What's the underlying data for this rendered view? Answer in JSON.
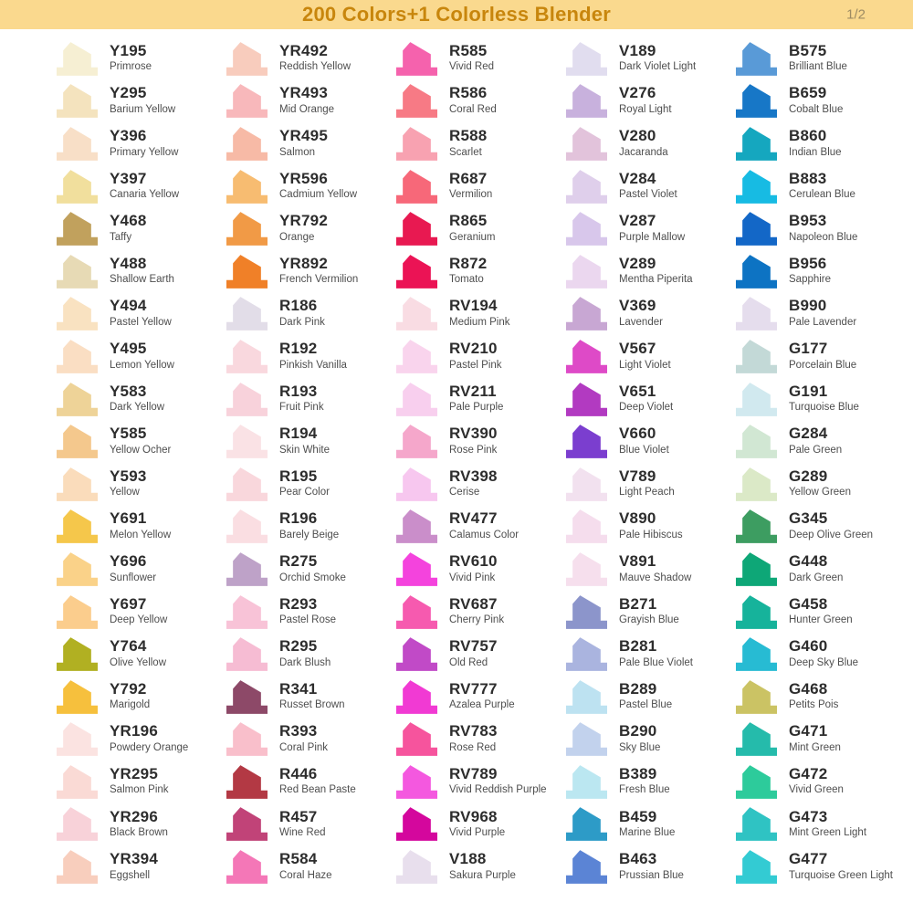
{
  "header": {
    "title": "200 Colors+1 Colorless Blender",
    "page": "1/2",
    "bg_color": "#FAD98E",
    "title_color": "#C8860D",
    "page_color": "#9D8B63"
  },
  "swatches": {
    "columns": [
      {
        "items": [
          {
            "code": "Y195",
            "name": "Primrose",
            "color": "#F6EFD3"
          },
          {
            "code": "Y295",
            "name": "Barium Yellow",
            "color": "#F4E3BE"
          },
          {
            "code": "Y396",
            "name": "Primary Yellow",
            "color": "#F8DFC7"
          },
          {
            "code": "Y397",
            "name": "Canaria Yellow",
            "color": "#F1DF9D"
          },
          {
            "code": "Y468",
            "name": "Taffy",
            "color": "#C1A15D"
          },
          {
            "code": "Y488",
            "name": "Shallow Earth",
            "color": "#E7DAB5"
          },
          {
            "code": "Y494",
            "name": "Pastel Yellow",
            "color": "#F9E2C1"
          },
          {
            "code": "Y495",
            "name": "Lemon Yellow",
            "color": "#FADEC3"
          },
          {
            "code": "Y583",
            "name": "Dark Yellow",
            "color": "#EED398"
          },
          {
            "code": "Y585",
            "name": "Yellow Ocher",
            "color": "#F4C88D"
          },
          {
            "code": "Y593",
            "name": "Yellow",
            "color": "#FADCBB"
          },
          {
            "code": "Y691",
            "name": "Melon Yellow",
            "color": "#F5C74B"
          },
          {
            "code": "Y696",
            "name": "Sunflower",
            "color": "#FAD289"
          },
          {
            "code": "Y697",
            "name": "Deep Yellow",
            "color": "#FBCD8D"
          },
          {
            "code": "Y764",
            "name": "Olive Yellow",
            "color": "#B1B022"
          },
          {
            "code": "Y792",
            "name": "Marigold",
            "color": "#F6C03D"
          },
          {
            "code": "YR196",
            "name": "Powdery Orange",
            "color": "#FBE3E1"
          },
          {
            "code": "YR295",
            "name": "Salmon Pink",
            "color": "#FADAD5"
          },
          {
            "code": "YR296",
            "name": "Black Brown",
            "color": "#F8D2D9"
          },
          {
            "code": "YR394",
            "name": "Eggshell",
            "color": "#F8CEBD"
          }
        ]
      },
      {
        "items": [
          {
            "code": "YR492",
            "name": "Reddish Yellow",
            "color": "#F8CCBD"
          },
          {
            "code": "YR493",
            "name": "Mid Orange",
            "color": "#F8B8BB"
          },
          {
            "code": "YR495",
            "name": "Salmon",
            "color": "#F7BAA6"
          },
          {
            "code": "YR596",
            "name": "Cadmium Yellow",
            "color": "#F7BC71"
          },
          {
            "code": "YR792",
            "name": "Orange",
            "color": "#F19A46"
          },
          {
            "code": "YR892",
            "name": "French Vermilion",
            "color": "#F08028"
          },
          {
            "code": "R186",
            "name": "Dark Pink",
            "color": "#E2DDE8"
          },
          {
            "code": "R192",
            "name": "Pinkish Vanilla",
            "color": "#F9D8DE"
          },
          {
            "code": "R193",
            "name": "Fruit Pink",
            "color": "#F8D2DB"
          },
          {
            "code": "R194",
            "name": "Skin White",
            "color": "#FAE2E5"
          },
          {
            "code": "R195",
            "name": "Pear Color",
            "color": "#F9D7DC"
          },
          {
            "code": "R196",
            "name": "Barely Beige",
            "color": "#FADEE2"
          },
          {
            "code": "R275",
            "name": "Orchid Smoke",
            "color": "#BEA2C8"
          },
          {
            "code": "R293",
            "name": "Pastel Rose",
            "color": "#F8C3D7"
          },
          {
            "code": "R295",
            "name": "Dark Blush",
            "color": "#F6BCD3"
          },
          {
            "code": "R341",
            "name": "Russet Brown",
            "color": "#8D4968"
          },
          {
            "code": "R393",
            "name": "Coral Pink",
            "color": "#F9BFCB"
          },
          {
            "code": "R446",
            "name": "Red Bean Paste",
            "color": "#B33944"
          },
          {
            "code": "R457",
            "name": "Wine Red",
            "color": "#C14378"
          },
          {
            "code": "R584",
            "name": "Coral Haze",
            "color": "#F477B7"
          }
        ]
      },
      {
        "items": [
          {
            "code": "R585",
            "name": "Vivid Red",
            "color": "#F562AD"
          },
          {
            "code": "R586",
            "name": "Coral Red",
            "color": "#F77A85"
          },
          {
            "code": "R588",
            "name": "Scarlet",
            "color": "#F8A2B1"
          },
          {
            "code": "R687",
            "name": "Vermilion",
            "color": "#F76879"
          },
          {
            "code": "R865",
            "name": "Geranium",
            "color": "#E81951"
          },
          {
            "code": "R872",
            "name": "Tomato",
            "color": "#EB1355"
          },
          {
            "code": "RV194",
            "name": "Medium Pink",
            "color": "#F9DCE3"
          },
          {
            "code": "RV210",
            "name": "Pastel Pink",
            "color": "#F9D4ED"
          },
          {
            "code": "RV211",
            "name": "Pale Purple",
            "color": "#F8CFEE"
          },
          {
            "code": "RV390",
            "name": "Rose Pink",
            "color": "#F5A7CB"
          },
          {
            "code": "RV398",
            "name": "Cerise",
            "color": "#F7C7EF"
          },
          {
            "code": "RV477",
            "name": "Calamus Color",
            "color": "#CA8ECA"
          },
          {
            "code": "RV610",
            "name": "Vivid Pink",
            "color": "#F443DD"
          },
          {
            "code": "RV687",
            "name": "Cherry Pink",
            "color": "#F65AAF"
          },
          {
            "code": "RV757",
            "name": "Old Red",
            "color": "#C14AC7"
          },
          {
            "code": "RV777",
            "name": "Azalea Purple",
            "color": "#F13AD3"
          },
          {
            "code": "RV783",
            "name": "Rose Red",
            "color": "#F6549D"
          },
          {
            "code": "RV789",
            "name": "Vivid Reddish Purple",
            "color": "#F458DF"
          },
          {
            "code": "RV968",
            "name": "Vivid Purple",
            "color": "#D4079D"
          },
          {
            "code": "V188",
            "name": "Sakura Purple",
            "color": "#E8DFED"
          }
        ]
      },
      {
        "items": [
          {
            "code": "V189",
            "name": "Dark Violet Light",
            "color": "#E1DDEF"
          },
          {
            "code": "V276",
            "name": "Royal Light",
            "color": "#C8B1DD"
          },
          {
            "code": "V280",
            "name": "Jacaranda",
            "color": "#E2C3DB"
          },
          {
            "code": "V284",
            "name": "Pastel Violet",
            "color": "#DFCFEB"
          },
          {
            "code": "V287",
            "name": "Purple Mallow",
            "color": "#D8C7EB"
          },
          {
            "code": "V289",
            "name": "Mentha Piperita",
            "color": "#EBD7EF"
          },
          {
            "code": "V369",
            "name": "Lavender",
            "color": "#C8A7D3"
          },
          {
            "code": "V567",
            "name": "Light Violet",
            "color": "#DE4AC7"
          },
          {
            "code": "V651",
            "name": "Deep Violet",
            "color": "#B23AC1"
          },
          {
            "code": "V660",
            "name": "Blue Violet",
            "color": "#7B3ECF"
          },
          {
            "code": "V789",
            "name": "Light Peach",
            "color": "#F2E1EF"
          },
          {
            "code": "V890",
            "name": "Pale Hibiscus",
            "color": "#F5DDED"
          },
          {
            "code": "V891",
            "name": "Mauve Shadow",
            "color": "#F6DFED"
          },
          {
            "code": "B271",
            "name": "Grayish Blue",
            "color": "#8C95CB"
          },
          {
            "code": "B281",
            "name": "Pale Blue Violet",
            "color": "#AAB4DF"
          },
          {
            "code": "B289",
            "name": "Pastel Blue",
            "color": "#BDE2F1"
          },
          {
            "code": "B290",
            "name": "Sky Blue",
            "color": "#C2D2ED"
          },
          {
            "code": "B389",
            "name": "Fresh Blue",
            "color": "#BBE7F1"
          },
          {
            "code": "B459",
            "name": "Marine Blue",
            "color": "#2D9BC7"
          },
          {
            "code": "B463",
            "name": "Prussian Blue",
            "color": "#5B84D5"
          }
        ]
      },
      {
        "items": [
          {
            "code": "B575",
            "name": "Brilliant Blue",
            "color": "#599AD7"
          },
          {
            "code": "B659",
            "name": "Cobalt Blue",
            "color": "#1777C7"
          },
          {
            "code": "B860",
            "name": "Indian Blue",
            "color": "#15A7BF"
          },
          {
            "code": "B883",
            "name": "Cerulean Blue",
            "color": "#17BBE3"
          },
          {
            "code": "B953",
            "name": "Napoleon Blue",
            "color": "#1367C7"
          },
          {
            "code": "B956",
            "name": "Sapphire",
            "color": "#0D73C3"
          },
          {
            "code": "B990",
            "name": "Pale Lavender",
            "color": "#E5DDED"
          },
          {
            "code": "G177",
            "name": "Porcelain Blue",
            "color": "#C3D9D7"
          },
          {
            "code": "G191",
            "name": "Turquoise Blue",
            "color": "#D1E9EF"
          },
          {
            "code": "G284",
            "name": "Pale Green",
            "color": "#D1E7D3"
          },
          {
            "code": "G289",
            "name": "Yellow Green",
            "color": "#DBE9C7"
          },
          {
            "code": "G345",
            "name": "Deep Olive Green",
            "color": "#3D9D61"
          },
          {
            "code": "G448",
            "name": "Dark Green",
            "color": "#0EA777"
          },
          {
            "code": "G458",
            "name": "Hunter Green",
            "color": "#16B39B"
          },
          {
            "code": "G460",
            "name": "Deep Sky Blue",
            "color": "#27BBD3"
          },
          {
            "code": "G468",
            "name": "Petits Pois",
            "color": "#CBC364"
          },
          {
            "code": "G471",
            "name": "Mint Green",
            "color": "#25BBAB"
          },
          {
            "code": "G472",
            "name": "Vivid Green",
            "color": "#2DCB9B"
          },
          {
            "code": "G473",
            "name": "Mint Green Light",
            "color": "#2FC3C3"
          },
          {
            "code": "G477",
            "name": "Turquoise Green Light",
            "color": "#33CBD3"
          }
        ]
      }
    ]
  }
}
